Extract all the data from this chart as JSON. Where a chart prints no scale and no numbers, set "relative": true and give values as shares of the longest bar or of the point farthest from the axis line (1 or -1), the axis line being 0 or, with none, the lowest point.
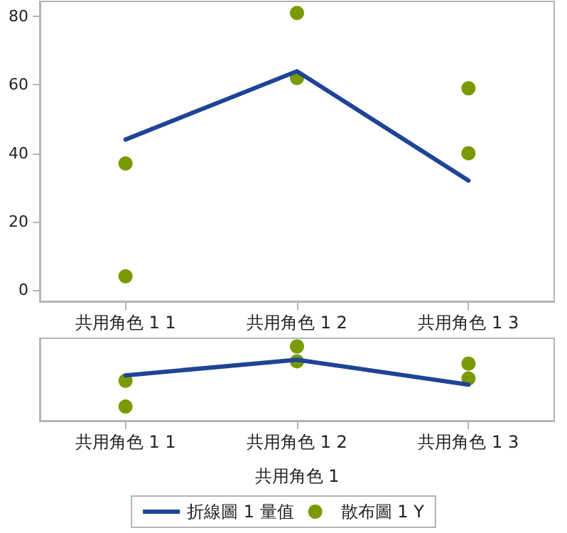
{
  "chart_data": [
    {
      "type": "line",
      "categories": [
        "共用角色 1 1",
        "共用角色 1 2",
        "共用角色 1 3"
      ],
      "ylim": [
        -3.3,
        84.4
      ],
      "yticks": [
        0,
        20,
        40,
        60,
        80
      ],
      "marker": "none",
      "line_style": "solid",
      "series": [
        {
          "type": "line",
          "color": "#1f4496",
          "values": [
            44,
            64,
            32
          ]
        },
        {
          "type": "scatter",
          "color": "#7a9a01",
          "marker": "circle",
          "x": [
            "共用角色 1 1",
            "共用角色 1 1",
            "共用角色 1 2",
            "共用角色 1 2",
            "共用角色 1 3",
            "共用角色 1 3"
          ],
          "values": [
            37,
            4,
            81,
            62,
            59,
            40
          ]
        }
      ]
    },
    {
      "type": "line",
      "relative": true,
      "categories": [
        "共用角色 1 1",
        "共用角色 1 2",
        "共用角色 1 3"
      ],
      "xlabel": "共用角色 1",
      "legend": "bottom",
      "marker": "none",
      "line_style": "solid",
      "series": [
        {
          "name": "折線圖 1 量值",
          "type": "line",
          "color": "#1f4496",
          "values": [
            0.611,
            0.821,
            0.485
          ]
        },
        {
          "name": "散布圖 1 Y",
          "type": "scatter",
          "color": "#7a9a01",
          "marker": "circle",
          "x": [
            "共用角色 1 1",
            "共用角色 1 1",
            "共用角色 1 2",
            "共用角色 1 2",
            "共用角色 1 3",
            "共用角色 1 3"
          ],
          "values": [
            0.538,
            0.191,
            1,
            0.8,
            0.769,
            0.569
          ]
        }
      ]
    }
  ]
}
